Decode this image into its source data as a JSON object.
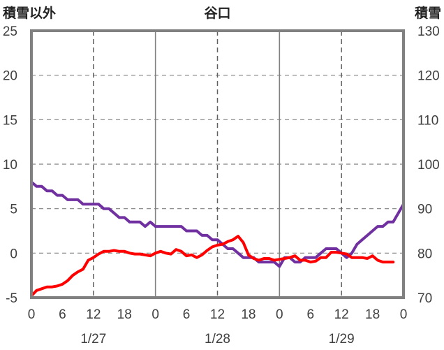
{
  "chart_data": {
    "type": "line",
    "title": "谷口",
    "left_axis": {
      "label": "積雪以外",
      "min": -5,
      "max": 25,
      "ticks": [
        "-5",
        "0",
        "5",
        "10",
        "15",
        "20",
        "25"
      ]
    },
    "right_axis": {
      "label": "積雪",
      "min": 70,
      "max": 130,
      "ticks": [
        "70",
        "80",
        "90",
        "100",
        "110",
        "120",
        "130"
      ]
    },
    "x_axis": {
      "min": 0,
      "max": 72,
      "hour_ticks": [
        "0",
        "6",
        "12",
        "18",
        "0",
        "6",
        "12",
        "18",
        "0",
        "6",
        "12",
        "18",
        "0"
      ],
      "date_labels": [
        {
          "text": "1/27",
          "at": 12
        },
        {
          "text": "1/28",
          "at": 36
        },
        {
          "text": "1/29",
          "at": 60
        }
      ],
      "dashed_lines_at": [
        12,
        36,
        60
      ],
      "solid_lines_at": [
        24,
        48
      ]
    },
    "grid": true,
    "series": [
      {
        "axis": "left",
        "color": "#ff0000",
        "points": [
          [
            0,
            -4.8
          ],
          [
            1,
            -4.2
          ],
          [
            2,
            -4.0
          ],
          [
            3,
            -3.8
          ],
          [
            4,
            -3.8
          ],
          [
            5,
            -3.7
          ],
          [
            6,
            -3.5
          ],
          [
            7,
            -3.1
          ],
          [
            8,
            -2.5
          ],
          [
            9,
            -2.1
          ],
          [
            10,
            -1.8
          ],
          [
            11,
            -0.8
          ],
          [
            12,
            -0.5
          ],
          [
            13,
            -0.1
          ],
          [
            14,
            0.2
          ],
          [
            15,
            0.2
          ],
          [
            16,
            0.3
          ],
          [
            17,
            0.2
          ],
          [
            18,
            0.2
          ],
          [
            19,
            0.0
          ],
          [
            20,
            -0.1
          ],
          [
            21,
            -0.1
          ],
          [
            22,
            -0.2
          ],
          [
            23,
            -0.3
          ],
          [
            24,
            0.0
          ],
          [
            25,
            0.2
          ],
          [
            26,
            0.0
          ],
          [
            27,
            -0.1
          ],
          [
            28,
            0.4
          ],
          [
            29,
            0.2
          ],
          [
            30,
            -0.3
          ],
          [
            31,
            -0.2
          ],
          [
            32,
            -0.5
          ],
          [
            33,
            -0.2
          ],
          [
            34,
            0.3
          ],
          [
            35,
            0.7
          ],
          [
            36,
            0.9
          ],
          [
            37,
            1.0
          ],
          [
            38,
            1.3
          ],
          [
            39,
            1.5
          ],
          [
            40,
            1.9
          ],
          [
            41,
            1.2
          ],
          [
            42,
            -0.2
          ],
          [
            43,
            -0.6
          ],
          [
            44,
            -0.8
          ],
          [
            45,
            -0.6
          ],
          [
            46,
            -0.6
          ],
          [
            47,
            -0.8
          ],
          [
            48,
            -0.7
          ],
          [
            49,
            -0.6
          ],
          [
            50,
            -0.5
          ],
          [
            51,
            -0.3
          ],
          [
            52,
            -0.8
          ],
          [
            53,
            -0.8
          ],
          [
            54,
            -1.0
          ],
          [
            55,
            -0.9
          ],
          [
            56,
            -0.5
          ],
          [
            57,
            -0.5
          ],
          [
            58,
            0.1
          ],
          [
            59,
            0.1
          ],
          [
            60,
            0.0
          ],
          [
            61,
            -0.1
          ],
          [
            62,
            -0.5
          ],
          [
            63,
            -0.5
          ],
          [
            64,
            -0.5
          ],
          [
            65,
            -0.6
          ],
          [
            66,
            -0.3
          ],
          [
            67,
            -0.8
          ],
          [
            68,
            -1.0
          ],
          [
            69,
            -1.0
          ],
          [
            70,
            -1.0
          ]
        ]
      },
      {
        "axis": "right",
        "color": "#7030a0",
        "points": [
          [
            0,
            96
          ],
          [
            1,
            95
          ],
          [
            2,
            95
          ],
          [
            3,
            94
          ],
          [
            4,
            94
          ],
          [
            5,
            93
          ],
          [
            6,
            93
          ],
          [
            7,
            92
          ],
          [
            8,
            92
          ],
          [
            9,
            92
          ],
          [
            10,
            91
          ],
          [
            11,
            91
          ],
          [
            12,
            91
          ],
          [
            13,
            91
          ],
          [
            14,
            90
          ],
          [
            15,
            90
          ],
          [
            16,
            89
          ],
          [
            17,
            88
          ],
          [
            18,
            88
          ],
          [
            19,
            87
          ],
          [
            20,
            87
          ],
          [
            21,
            87
          ],
          [
            22,
            86
          ],
          [
            23,
            87
          ],
          [
            24,
            86
          ],
          [
            25,
            86
          ],
          [
            26,
            86
          ],
          [
            27,
            86
          ],
          [
            28,
            86
          ],
          [
            29,
            86
          ],
          [
            30,
            85
          ],
          [
            31,
            85
          ],
          [
            32,
            85
          ],
          [
            33,
            84
          ],
          [
            34,
            84
          ],
          [
            35,
            83
          ],
          [
            36,
            83
          ],
          [
            37,
            82
          ],
          [
            38,
            81
          ],
          [
            39,
            81
          ],
          [
            40,
            80
          ],
          [
            41,
            79
          ],
          [
            42,
            79
          ],
          [
            43,
            79
          ],
          [
            44,
            78
          ],
          [
            45,
            78
          ],
          [
            46,
            78
          ],
          [
            47,
            78
          ],
          [
            48,
            77
          ],
          [
            49,
            79
          ],
          [
            50,
            79
          ],
          [
            51,
            78
          ],
          [
            52,
            78
          ],
          [
            53,
            79
          ],
          [
            54,
            79
          ],
          [
            55,
            79
          ],
          [
            56,
            80
          ],
          [
            57,
            81
          ],
          [
            58,
            81
          ],
          [
            59,
            81
          ],
          [
            60,
            80
          ],
          [
            61,
            79
          ],
          [
            62,
            80
          ],
          [
            63,
            82
          ],
          [
            64,
            83
          ],
          [
            65,
            84
          ],
          [
            66,
            85
          ],
          [
            67,
            86
          ],
          [
            68,
            86
          ],
          [
            69,
            87
          ],
          [
            70,
            87
          ],
          [
            71,
            89
          ],
          [
            72,
            91
          ]
        ]
      }
    ]
  }
}
